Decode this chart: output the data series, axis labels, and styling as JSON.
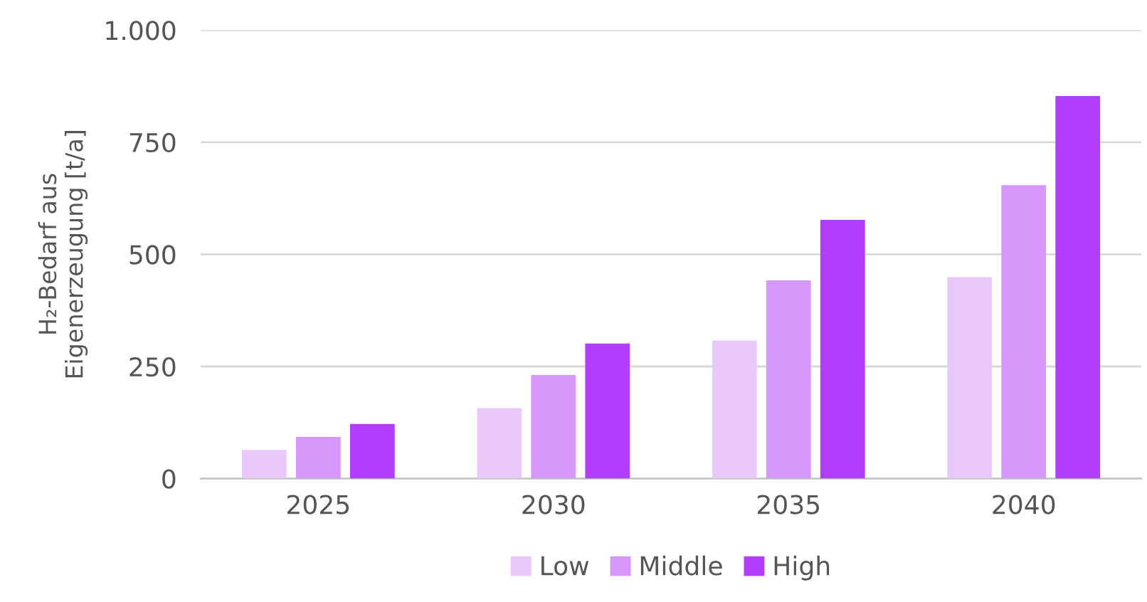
{
  "chart_data": {
    "type": "bar",
    "ylabel": "H₂-Bedarf aus\nEigenerzeugung [t/a]",
    "categories": [
      "2025",
      "2030",
      "2035",
      "2040"
    ],
    "series": [
      {
        "name": "Low",
        "color": "#e9c9fb",
        "values": [
          64,
          157,
          308,
          449
        ]
      },
      {
        "name": "Middle",
        "color": "#d897fb",
        "values": [
          93,
          231,
          442,
          654
        ]
      },
      {
        "name": "High",
        "color": "#b23dfd",
        "values": [
          122,
          301,
          577,
          853
        ]
      }
    ],
    "ylim": [
      0,
      1000
    ],
    "yticks": [
      0,
      250,
      500,
      750,
      {
        "value": 1000,
        "label": "1.000"
      }
    ],
    "grid": "y",
    "legend": "bottom"
  }
}
